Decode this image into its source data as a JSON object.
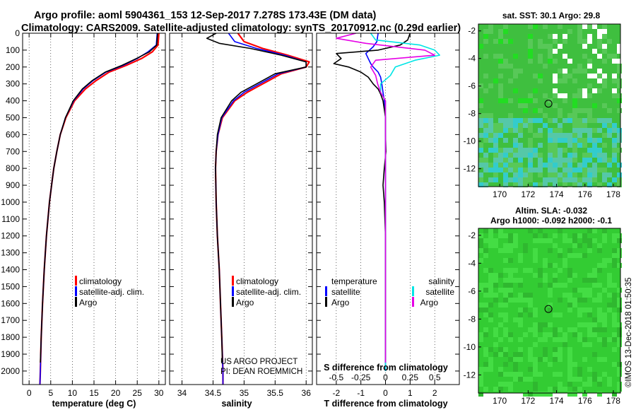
{
  "title_line1": "Argo profile: aoml 5904361_153 12-Sep-2017 7.278S 173.43E (DM data)",
  "title_line2": "Climatology: CARS2009. Satellite-adjusted climatology: synTS_20170912.nc (0.29d earlier)",
  "watermark": "©IMOS 13-Dec-2018 01:50:35",
  "colors": {
    "climatology": "#ff0000",
    "satellite": "#0000ff",
    "argo": "#000000",
    "sal_satellite": "#00e5e5",
    "sal_argo": "#e600e6",
    "map_green": "#33cc33"
  },
  "depth_ticks": [
    0,
    100,
    200,
    300,
    400,
    500,
    600,
    700,
    800,
    900,
    1000,
    1100,
    1200,
    1300,
    1400,
    1500,
    1600,
    1700,
    1800,
    1900,
    2000
  ],
  "panels": {
    "temperature": {
      "xlabel": "temperature (deg C)",
      "xticks": [
        "0",
        "5",
        "10",
        "15",
        "20",
        "25",
        "30"
      ],
      "legend": [
        "climatology",
        "satellite-adj. clim.",
        "Argo"
      ]
    },
    "salinity": {
      "xlabel": "salinity",
      "xticks": [
        "34",
        "34.5",
        "35",
        "35.5",
        "36"
      ],
      "legend": [
        "climatology",
        "satellite-adj. clim.",
        "Argo"
      ],
      "credit_1": "US ARGO PROJECT",
      "credit_2": "PI: DEAN ROEMMICH"
    },
    "difference": {
      "xlabel": "T difference from climatology",
      "xticks": [
        "-2",
        "-1",
        "0",
        "1",
        "2"
      ],
      "top_label": "S difference from climatology",
      "top_ticks": [
        "-0.5",
        "-0.25",
        "0",
        "0.25",
        "0.5"
      ],
      "legend_temp_title": "temperature",
      "legend_sal_title": "salinity",
      "legend_temp": [
        "satellite",
        "Argo"
      ],
      "legend_sal": [
        "satellite",
        "Argo"
      ]
    }
  },
  "maps": {
    "sst": {
      "title": "sat. SST: 30.1 Argo: 29.8",
      "yticks": [
        "-2",
        "-4",
        "-6",
        "-8",
        "-10",
        "-12"
      ],
      "xticks": [
        "170",
        "172",
        "174",
        "176",
        "178"
      ]
    },
    "sla": {
      "title_1": "Altim. SLA: -0.032",
      "title_2": "Argo h1000: -0.092 h2000: -0.1",
      "yticks": [
        "-2",
        "-4",
        "-6",
        "-8",
        "-10",
        "-12"
      ],
      "xticks": [
        "170",
        "172",
        "174",
        "176",
        "178"
      ]
    }
  },
  "chart_data": [
    {
      "type": "line",
      "title": "temperature",
      "xlabel": "temperature (deg C)",
      "ylabel": "depth",
      "xlim": [
        -1.5,
        31.5
      ],
      "ylim": [
        2080,
        0
      ],
      "series": [
        {
          "name": "climatology",
          "depth": [
            0,
            70,
            110,
            150,
            190,
            230,
            280,
            330,
            400,
            500,
            600,
            700,
            800,
            900,
            1000,
            1200,
            1400,
            1600,
            1800,
            2000,
            2080
          ],
          "values": [
            30.0,
            29.8,
            28.5,
            26.0,
            22.5,
            18.5,
            15.5,
            13.0,
            10.5,
            8.5,
            7.2,
            6.4,
            5.7,
            5.2,
            4.7,
            4.0,
            3.5,
            3.1,
            2.8,
            2.6,
            2.5
          ]
        },
        {
          "name": "satellite-adj. clim.",
          "depth": [
            0,
            70,
            110,
            150,
            190,
            230,
            280,
            330,
            400,
            500,
            600,
            700,
            800,
            900,
            1000,
            1200,
            1400,
            1600,
            1800,
            2000,
            2080
          ],
          "values": [
            29.6,
            29.4,
            27.5,
            25.0,
            21.8,
            17.8,
            14.8,
            12.5,
            10.3,
            8.4,
            7.2,
            6.4,
            5.7,
            5.2,
            4.7,
            4.0,
            3.5,
            3.1,
            2.8,
            2.6,
            2.5
          ]
        },
        {
          "name": "Argo",
          "depth": [
            0,
            70,
            110,
            150,
            190,
            230,
            280,
            330,
            400,
            500,
            600,
            700,
            800,
            900,
            1000,
            1200,
            1400,
            1600,
            1800,
            1950
          ],
          "values": [
            29.7,
            29.5,
            27.8,
            24.8,
            21.5,
            17.6,
            14.6,
            12.3,
            10.2,
            8.4,
            7.2,
            6.4,
            5.7,
            5.2,
            4.7,
            4.0,
            3.5,
            3.1,
            2.8,
            2.6
          ]
        }
      ]
    },
    {
      "type": "line",
      "title": "salinity",
      "xlabel": "salinity",
      "ylabel": "depth",
      "xlim": [
        33.8,
        36.1
      ],
      "ylim": [
        2080,
        0
      ],
      "series": [
        {
          "name": "climatology",
          "depth": [
            0,
            50,
            90,
            130,
            170,
            200,
            240,
            300,
            350,
            400,
            500,
            600,
            700,
            800,
            1000,
            1200,
            1400,
            1600,
            1800,
            2000,
            2080
          ],
          "values": [
            34.9,
            35.0,
            35.3,
            35.7,
            36.05,
            36.0,
            35.6,
            35.3,
            35.05,
            34.85,
            34.65,
            34.58,
            34.55,
            34.54,
            34.55,
            34.57,
            34.6,
            34.62,
            34.64,
            34.66,
            34.66
          ]
        },
        {
          "name": "satellite-adj. clim.",
          "depth": [
            0,
            50,
            90,
            130,
            170,
            200,
            240,
            300,
            350,
            400,
            500,
            600,
            700,
            800,
            1000,
            1200,
            1400,
            1600,
            1800,
            2000,
            2080
          ],
          "values": [
            34.75,
            34.85,
            35.2,
            35.65,
            36.0,
            36.0,
            35.55,
            35.25,
            35.0,
            34.83,
            34.64,
            34.58,
            34.55,
            34.54,
            34.55,
            34.57,
            34.6,
            34.62,
            34.64,
            34.66,
            34.66
          ]
        },
        {
          "name": "Argo",
          "depth": [
            0,
            30,
            60,
            90,
            130,
            170,
            200,
            240,
            300,
            350,
            400,
            500,
            600,
            700,
            800,
            1000,
            1200,
            1400,
            1600,
            1800,
            1950
          ],
          "values": [
            34.55,
            34.4,
            34.6,
            35.1,
            35.6,
            36.0,
            36.0,
            35.5,
            35.2,
            34.95,
            34.8,
            34.63,
            34.57,
            34.55,
            34.54,
            34.55,
            34.57,
            34.6,
            34.62,
            34.64,
            34.65
          ]
        }
      ]
    },
    {
      "type": "line",
      "title": "difference from climatology",
      "xlabel": "T difference from climatology",
      "ylabel": "depth",
      "xlim": [
        -2.8,
        3.0
      ],
      "ylim": [
        2080,
        0
      ],
      "series": [
        {
          "name": "temperature satellite",
          "depth": [
            0,
            50,
            80,
            120,
            150,
            180,
            200,
            230,
            260,
            300,
            350,
            400,
            500,
            700,
            1000,
            1500,
            2000
          ],
          "values": [
            -0.3,
            -0.35,
            -0.5,
            -0.8,
            -0.7,
            -0.6,
            -0.5,
            -0.3,
            -0.2,
            -0.15,
            -0.1,
            -0.05,
            0.0,
            0.0,
            0.0,
            0.0,
            0.0
          ]
        },
        {
          "name": "temperature Argo",
          "depth": [
            0,
            40,
            70,
            100,
            120,
            150,
            180,
            200,
            230,
            260,
            300,
            330,
            360,
            400,
            450,
            500,
            600,
            700,
            800,
            900,
            1000,
            1200,
            1500,
            1800,
            1950
          ],
          "values": [
            1.0,
            0.9,
            0.6,
            -0.3,
            -2.0,
            -1.8,
            -2.1,
            -1.5,
            -1.0,
            -0.7,
            -0.5,
            -0.3,
            -0.2,
            -0.1,
            -0.05,
            0.0,
            0.0,
            0.02,
            -0.05,
            -0.1,
            -0.05,
            0.0,
            0.0,
            0.0,
            0.0
          ]
        },
        {
          "name": "salinity satellite",
          "depth": [
            0,
            40,
            70,
            100,
            130,
            160,
            200,
            250,
            300,
            350,
            400,
            500,
            1000,
            1500,
            2000
          ],
          "values": [
            -0.15,
            -0.1,
            0.35,
            0.5,
            0.55,
            0.3,
            0.1,
            0.05,
            -0.05,
            -0.05,
            0.0,
            0.0,
            0.0,
            0.0,
            0.0
          ]
        },
        {
          "name": "salinity Argo",
          "depth": [
            0,
            30,
            60,
            100,
            130,
            160,
            200,
            250,
            300,
            350,
            400,
            500,
            1000,
            1500,
            1950
          ],
          "values": [
            -0.3,
            -0.5,
            -0.2,
            0.4,
            0.5,
            -0.1,
            -0.15,
            -0.1,
            -0.08,
            -0.05,
            0.0,
            0.0,
            0.0,
            0.0,
            0.0
          ]
        }
      ]
    },
    {
      "type": "heatmap",
      "title": "sat. SST: 30.1 Argo: 29.8",
      "xlim": [
        168.5,
        178.5
      ],
      "ylim": [
        -13.3,
        -1.5
      ],
      "marker": {
        "lon": 173.43,
        "lat": -7.278
      }
    },
    {
      "type": "heatmap",
      "title": "Altim. SLA: -0.032",
      "xlim": [
        168.5,
        178.5
      ],
      "ylim": [
        -13.3,
        -1.5
      ],
      "marker": {
        "lon": 173.43,
        "lat": -7.278
      }
    }
  ]
}
